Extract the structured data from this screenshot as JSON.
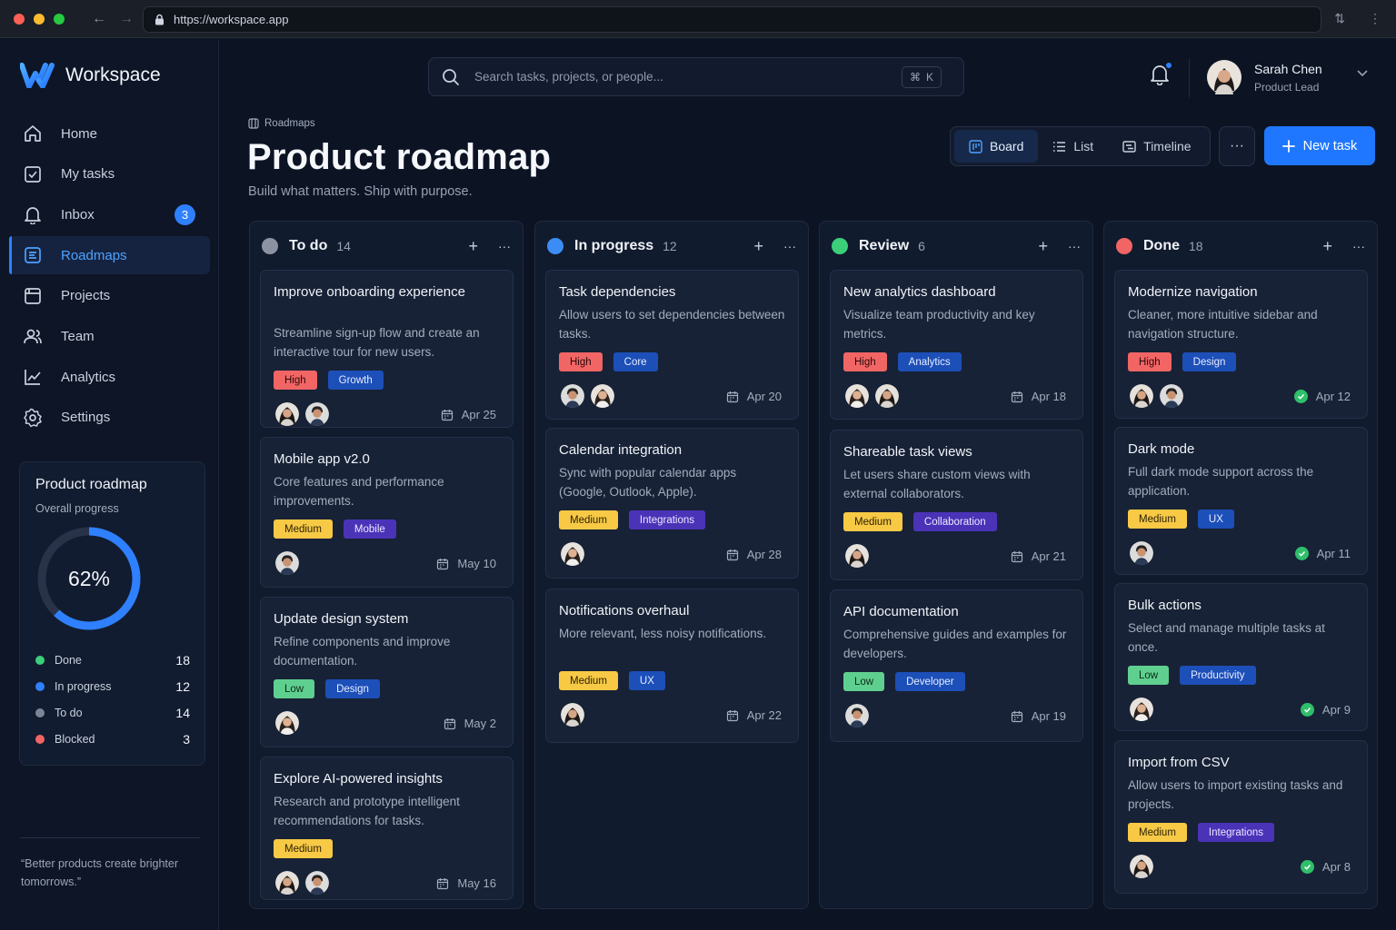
{
  "browser": {
    "url": "https://workspace.app"
  },
  "app_name": "Workspace",
  "nav": [
    {
      "label": "Home",
      "icon": "home-icon"
    },
    {
      "label": "My tasks",
      "icon": "checkbox-icon"
    },
    {
      "label": "Inbox",
      "icon": "bell-icon",
      "badge": "3"
    },
    {
      "label": "Roadmaps",
      "icon": "roadmap-icon",
      "active": true
    },
    {
      "label": "Projects",
      "icon": "folder-icon"
    },
    {
      "label": "Team",
      "icon": "team-icon"
    },
    {
      "label": "Analytics",
      "icon": "analytics-icon"
    },
    {
      "label": "Settings",
      "icon": "gear-icon"
    }
  ],
  "progress": {
    "title": "Product roadmap",
    "subtitle": "Overall progress",
    "percent_label": "62%",
    "percent": 62,
    "legend": [
      {
        "label": "Done",
        "value": "18",
        "color": "#3ccf7a"
      },
      {
        "label": "In progress",
        "value": "12",
        "color": "#2f80ff"
      },
      {
        "label": "To do",
        "value": "14",
        "color": "#7d8696"
      },
      {
        "label": "Blocked",
        "value": "3",
        "color": "#f26565"
      }
    ]
  },
  "quote": "“Better products create brighter tomorrows.”",
  "search": {
    "placeholder": "Search tasks, projects, or people...",
    "shortcut_cmd": "⌘",
    "shortcut_key": "K"
  },
  "user": {
    "name": "Sarah Chen",
    "role": "Product Lead"
  },
  "header": {
    "breadcrumb": "Roadmaps",
    "title": "Product roadmap",
    "subtitle": "Build what matters. Ship with purpose.",
    "views": [
      "Board",
      "List",
      "Timeline"
    ],
    "active_view": "Board",
    "new_button": "New task"
  },
  "colors": {
    "accent": "#1f77ff",
    "todo": "#8b93a3",
    "in_progress": "#3b8df5",
    "review": "#3ccf7a",
    "done": "#f26565"
  },
  "columns": [
    {
      "title": "To do",
      "count": "14",
      "color": "#8b93a3",
      "cards": [
        {
          "title": "Improve onboarding experience",
          "desc": "Streamline sign-up flow and create an interactive tour for new users.",
          "tags": [
            [
              "High",
              "high"
            ],
            [
              "Growth",
              "blue"
            ]
          ],
          "avatars": 2,
          "date": "Apr 25",
          "done": false
        },
        {
          "title": "Mobile app v2.0",
          "desc": "Core features and performance improvements.",
          "tags": [
            [
              "Medium",
              "medium"
            ],
            [
              "Mobile",
              "purple"
            ]
          ],
          "avatars": 1,
          "date": "May 10",
          "done": false
        },
        {
          "title": "Update design system",
          "desc": "Refine components and improve documentation.",
          "tags": [
            [
              "Low",
              "low"
            ],
            [
              "Design",
              "blue"
            ]
          ],
          "avatars": 1,
          "date": "May 2",
          "done": false
        },
        {
          "title": "Explore AI-powered insights",
          "desc": "Research and prototype intelligent recommendations for tasks.",
          "tags": [
            [
              "Medium",
              "medium"
            ]
          ],
          "avatars": 2,
          "date": "May 16",
          "done": false
        }
      ]
    },
    {
      "title": "In progress",
      "count": "12",
      "color": "#3b8df5",
      "cards": [
        {
          "title": "Task dependencies",
          "desc": "Allow users to set dependencies between tasks.",
          "tags": [
            [
              "High",
              "high"
            ],
            [
              "Core",
              "blue"
            ]
          ],
          "avatars": 2,
          "date": "Apr 20",
          "done": false
        },
        {
          "title": "Calendar integration",
          "desc": "Sync with popular calendar apps (Google, Outlook, Apple).",
          "tags": [
            [
              "Medium",
              "medium"
            ],
            [
              "Integrations",
              "purple"
            ]
          ],
          "avatars": 1,
          "date": "Apr 28",
          "done": false
        },
        {
          "title": "Notifications overhaul",
          "desc": "More relevant, less noisy notifications.",
          "tags": [
            [
              "Medium",
              "medium"
            ],
            [
              "UX",
              "blue"
            ]
          ],
          "avatars": 1,
          "date": "Apr 22",
          "done": false
        }
      ]
    },
    {
      "title": "Review",
      "count": "6",
      "color": "#3ccf7a",
      "cards": [
        {
          "title": "New analytics dashboard",
          "desc": "Visualize team productivity and key metrics.",
          "tags": [
            [
              "High",
              "high"
            ],
            [
              "Analytics",
              "blue"
            ]
          ],
          "avatars": 2,
          "date": "Apr 18",
          "done": false
        },
        {
          "title": "Shareable task views",
          "desc": "Let users share custom views with external collaborators.",
          "tags": [
            [
              "Medium",
              "medium"
            ],
            [
              "Collaboration",
              "purple"
            ]
          ],
          "avatars": 1,
          "date": "Apr 21",
          "done": false
        },
        {
          "title": "API documentation",
          "desc": "Comprehensive guides and examples for developers.",
          "tags": [
            [
              "Low",
              "low"
            ],
            [
              "Developer",
              "blue"
            ]
          ],
          "avatars": 1,
          "date": "Apr 19",
          "done": false
        }
      ]
    },
    {
      "title": "Done",
      "count": "18",
      "color": "#f26565",
      "cards": [
        {
          "title": "Modernize navigation",
          "desc": "Cleaner, more intuitive sidebar and navigation structure.",
          "tags": [
            [
              "High",
              "high"
            ],
            [
              "Design",
              "blue"
            ]
          ],
          "avatars": 2,
          "date": "Apr 12",
          "done": true
        },
        {
          "title": "Dark mode",
          "desc": "Full dark mode support across the application.",
          "tags": [
            [
              "Medium",
              "medium"
            ],
            [
              "UX",
              "blue"
            ]
          ],
          "avatars": 1,
          "date": "Apr 11",
          "done": true
        },
        {
          "title": "Bulk actions",
          "desc": "Select and manage multiple tasks at once.",
          "tags": [
            [
              "Low",
              "low"
            ],
            [
              "Productivity",
              "blue"
            ]
          ],
          "avatars": 1,
          "date": "Apr 9",
          "done": true
        },
        {
          "title": "Import from CSV",
          "desc": "Allow users to import existing tasks and projects.",
          "tags": [
            [
              "Medium",
              "medium"
            ],
            [
              "Integrations",
              "purple"
            ]
          ],
          "avatars": 1,
          "date": "Apr 8",
          "done": true
        }
      ]
    }
  ]
}
